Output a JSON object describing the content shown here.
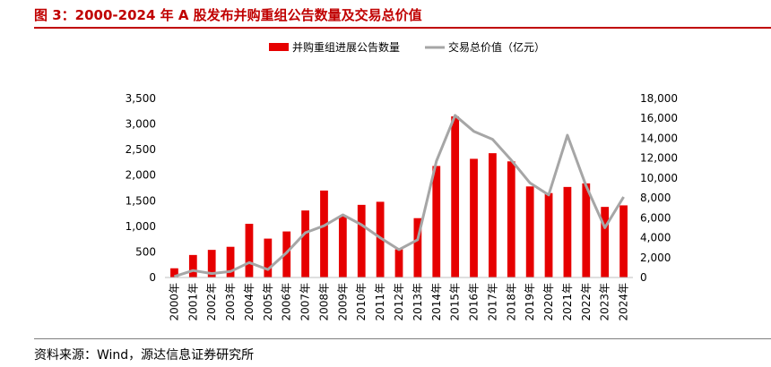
{
  "header": {
    "title": "图 3：2000-2024 年 A 股发布并购重组公告数量及交易总价值"
  },
  "footer": {
    "source": "资料来源：Wind，源达信息证券研究所"
  },
  "colors": {
    "bar": "#e60000",
    "line": "#a6a6a6",
    "title": "#c00000"
  },
  "chart_data": {
    "type": "bar+line",
    "categories": [
      "2000年",
      "2001年",
      "2002年",
      "2003年",
      "2004年",
      "2005年",
      "2006年",
      "2007年",
      "2008年",
      "2009年",
      "2010年",
      "2011年",
      "2012年",
      "2013年",
      "2014年",
      "2015年",
      "2016年",
      "2017年",
      "2018年",
      "2019年",
      "2020年",
      "2021年",
      "2022年",
      "2023年",
      "2024年"
    ],
    "series": [
      {
        "name": "并购重组进展公告数量",
        "type": "bar",
        "axis": "left",
        "values": [
          180,
          440,
          540,
          600,
          1050,
          760,
          900,
          1310,
          1700,
          1200,
          1420,
          1480,
          550,
          1160,
          2180,
          3150,
          2320,
          2430,
          2270,
          1780,
          1650,
          1770,
          1840,
          1380,
          1410
        ]
      },
      {
        "name": "交易总价值（亿元）",
        "type": "line",
        "axis": "right",
        "values": [
          100,
          700,
          400,
          600,
          1500,
          800,
          2500,
          4500,
          5200,
          6300,
          5300,
          4000,
          2800,
          3800,
          11700,
          16300,
          14700,
          13900,
          11800,
          9500,
          8300,
          14300,
          9200,
          5000,
          8100
        ]
      }
    ],
    "left_axis": {
      "min": 0,
      "max": 3500,
      "step": 500,
      "tick_labels": [
        "0",
        "500",
        "1,000",
        "1,500",
        "2,000",
        "2,500",
        "3,000",
        "3,500"
      ]
    },
    "right_axis": {
      "min": 0,
      "max": 18000,
      "step": 2000,
      "tick_labels": [
        "0",
        "2,000",
        "4,000",
        "6,000",
        "8,000",
        "10,000",
        "12,000",
        "14,000",
        "16,000",
        "18,000"
      ]
    },
    "legend_position": "top-center",
    "grid": false
  }
}
